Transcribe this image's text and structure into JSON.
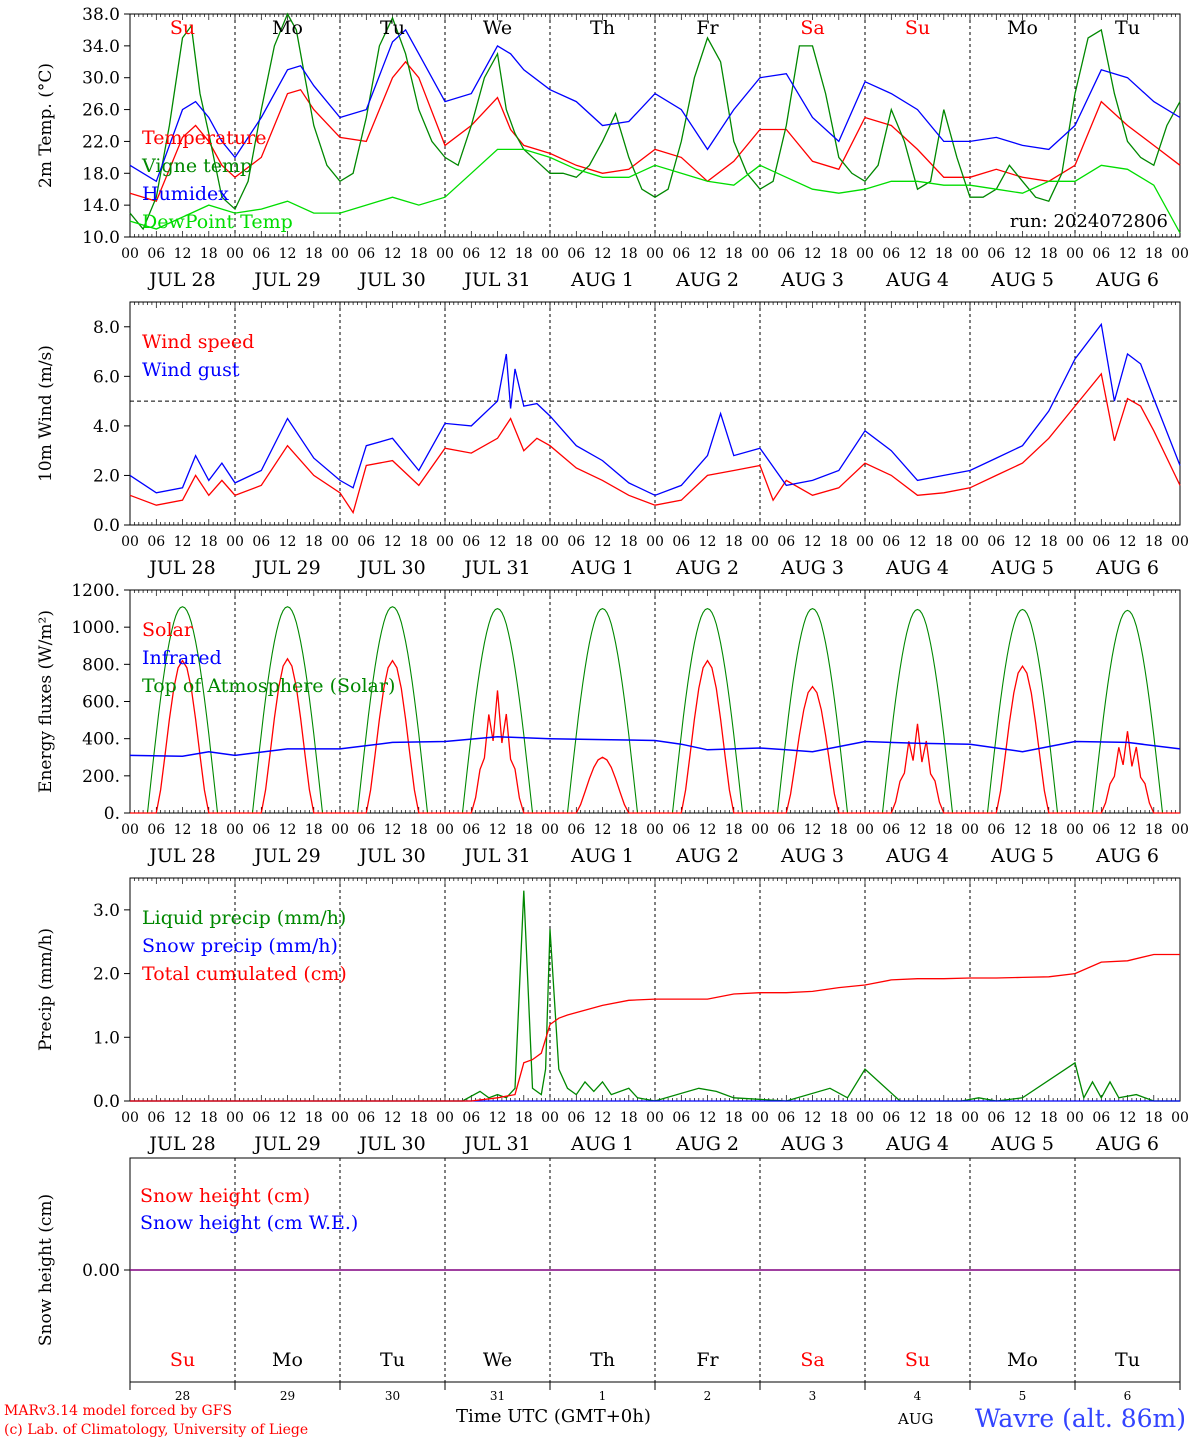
{
  "run_label": "run: 2024072806",
  "credit_line1": "MARv3.14 model forced by GFS",
  "credit_line2": "(c) Lab. of Climatology, University of Liege",
  "location_title": "Wavre (alt. 86m)",
  "month_label": "AUG",
  "time_axis_label": "Time UTC (GMT+0h)",
  "hour_ticks": [
    "00",
    "06",
    "12",
    "18"
  ],
  "final_hour_tick": "00",
  "date_labels": [
    "JUL 28",
    "JUL 29",
    "JUL 30",
    "JUL 31",
    "AUG  1",
    "AUG  2",
    "AUG  3",
    "AUG  4",
    "AUG  5",
    "AUG  6"
  ],
  "day_names": [
    "Su",
    "Mo",
    "Tu",
    "We",
    "Th",
    "Fr",
    "Sa",
    "Su",
    "Mo",
    "Tu"
  ],
  "day_numbers": [
    "28",
    "29",
    "30",
    "31",
    "1",
    "2",
    "3",
    "4",
    "5",
    "6"
  ],
  "weekend_color": "#ff0000",
  "weekday_color": "#000000",
  "chart_data": [
    {
      "type": "line",
      "ylabel": "2m Temp. (°C)",
      "ylim": [
        10,
        38
      ],
      "yticks": [
        "10.0",
        "14.0",
        "18.0",
        "22.0",
        "26.0",
        "30.0",
        "34.0",
        "38.0"
      ],
      "ytick_values": [
        10,
        14,
        18,
        22,
        26,
        30,
        34,
        38
      ],
      "x_unit": "hours since Jul 28 00 UTC",
      "series": [
        {
          "name": "Temperature",
          "color": "#ff0000",
          "x": [
            0,
            6,
            12,
            15,
            18,
            21,
            24,
            30,
            36,
            39,
            42,
            48,
            54,
            60,
            63,
            66,
            72,
            78,
            84,
            87,
            90,
            96,
            102,
            108,
            114,
            120,
            126,
            132,
            138,
            144,
            150,
            156,
            162,
            168,
            174,
            180,
            186,
            192,
            198,
            204,
            210,
            216,
            222,
            228,
            234,
            240
          ],
          "y": [
            15.5,
            14.5,
            22.5,
            24,
            22,
            19,
            17.5,
            20,
            28,
            28.5,
            26,
            22.5,
            22,
            30,
            32,
            30,
            21.5,
            24,
            27.5,
            23.5,
            21.5,
            20.5,
            19,
            18,
            18.5,
            21,
            20,
            17,
            19.5,
            23.5,
            23.5,
            19.5,
            18.5,
            25,
            24,
            21,
            17.5,
            17.5,
            18.5,
            17.5,
            17,
            19,
            27,
            24,
            21.5,
            19
          ]
        },
        {
          "name": "Vigne temp",
          "color": "#008800",
          "x": [
            0,
            3,
            6,
            9,
            12,
            14,
            16,
            18,
            21,
            24,
            27,
            30,
            33,
            36,
            38,
            40,
            42,
            45,
            48,
            51,
            54,
            57,
            60,
            63,
            66,
            69,
            72,
            75,
            78,
            81,
            84,
            86,
            88,
            90,
            93,
            96,
            99,
            102,
            105,
            108,
            111,
            114,
            117,
            120,
            123,
            126,
            129,
            132,
            135,
            138,
            141,
            144,
            147,
            150,
            153,
            156,
            159,
            162,
            165,
            168,
            171,
            174,
            177,
            180,
            183,
            186,
            189,
            192,
            195,
            198,
            201,
            204,
            207,
            210,
            213,
            216,
            219,
            222,
            225,
            228,
            231,
            234,
            237,
            240
          ],
          "y": [
            13,
            11,
            15,
            24,
            35,
            36.5,
            28,
            23,
            15,
            13.5,
            17,
            26,
            34,
            38,
            36,
            30,
            24,
            19,
            17,
            18,
            25,
            34,
            37.5,
            33,
            26,
            22,
            20,
            19,
            24,
            30,
            33,
            26,
            23,
            21,
            19.5,
            18,
            18,
            17.5,
            19,
            22,
            25.5,
            20,
            16,
            15,
            16,
            22,
            30,
            35,
            32,
            22,
            18,
            16,
            17,
            24,
            34,
            34,
            28,
            20,
            18,
            17,
            19,
            26,
            22,
            16,
            17,
            26,
            20,
            15,
            15,
            16,
            19,
            17,
            15,
            14.5,
            18,
            28,
            35,
            36,
            28,
            22,
            20,
            19,
            24,
            27
          ]
        },
        {
          "name": "Humidex",
          "color": "#0000ff",
          "x": [
            0,
            6,
            12,
            15,
            18,
            21,
            24,
            30,
            36,
            39,
            42,
            48,
            54,
            60,
            63,
            66,
            72,
            78,
            84,
            87,
            90,
            96,
            102,
            108,
            114,
            120,
            126,
            132,
            138,
            144,
            150,
            156,
            162,
            168,
            174,
            180,
            186,
            192,
            198,
            204,
            210,
            216,
            222,
            228,
            234,
            240
          ],
          "y": [
            19,
            17,
            26,
            27,
            25,
            22,
            20,
            25,
            31,
            31.5,
            29,
            25,
            26,
            34.5,
            36,
            33,
            27,
            28,
            34,
            33,
            31,
            28.5,
            27,
            24,
            24.5,
            28,
            26,
            21,
            26,
            30,
            30.5,
            25,
            22,
            29.5,
            28,
            26,
            22,
            22,
            22.5,
            21.5,
            21,
            24,
            31,
            30,
            27,
            25
          ]
        },
        {
          "name": "DewPoint Temp",
          "color": "#00dd00",
          "x": [
            0,
            6,
            12,
            18,
            24,
            30,
            36,
            42,
            48,
            54,
            60,
            66,
            72,
            78,
            84,
            90,
            96,
            102,
            108,
            114,
            120,
            126,
            132,
            138,
            144,
            150,
            156,
            162,
            168,
            174,
            180,
            186,
            192,
            198,
            204,
            210,
            216,
            222,
            228,
            234,
            240
          ],
          "y": [
            12,
            11,
            12.5,
            14,
            13,
            13.5,
            14.5,
            13,
            13,
            14,
            15,
            14,
            15,
            18,
            21,
            21,
            20,
            18.5,
            17.5,
            17.5,
            19,
            18,
            17,
            16.5,
            19,
            17.5,
            16,
            15.5,
            16,
            17,
            17,
            16.5,
            16.5,
            16,
            15.5,
            17,
            17,
            19,
            18.5,
            16.5,
            10.5
          ]
        }
      ],
      "legend": [
        "Temperature",
        "Vigne temp",
        "Humidex",
        "DewPoint Temp"
      ],
      "legend_placement": "top-left"
    },
    {
      "type": "line",
      "ylabel": "10m Wind (m/s)",
      "ylim": [
        0,
        9
      ],
      "yticks": [
        "0.0",
        "2.0",
        "4.0",
        "6.0",
        "8.0"
      ],
      "ytick_values": [
        0,
        2,
        4,
        6,
        8
      ],
      "reference_line": 5,
      "series": [
        {
          "name": "Wind speed",
          "color": "#ff0000",
          "x": [
            0,
            6,
            12,
            15,
            18,
            21,
            24,
            30,
            36,
            42,
            48,
            51,
            54,
            60,
            66,
            72,
            78,
            84,
            87,
            90,
            93,
            96,
            102,
            108,
            114,
            120,
            126,
            132,
            138,
            144,
            147,
            150,
            156,
            162,
            168,
            174,
            180,
            186,
            192,
            198,
            204,
            210,
            216,
            222,
            225,
            228,
            231,
            234,
            240
          ],
          "y": [
            1.2,
            0.8,
            1.0,
            2.0,
            1.2,
            1.8,
            1.2,
            1.6,
            3.2,
            2.0,
            1.3,
            0.5,
            2.4,
            2.6,
            1.6,
            3.1,
            2.9,
            3.5,
            4.3,
            3.0,
            3.5,
            3.2,
            2.3,
            1.8,
            1.2,
            0.8,
            1.0,
            2.0,
            2.2,
            2.4,
            1.0,
            1.8,
            1.2,
            1.5,
            2.5,
            2.0,
            1.2,
            1.3,
            1.5,
            2.0,
            2.5,
            3.5,
            4.8,
            6.1,
            3.4,
            5.1,
            4.8,
            3.8,
            1.6
          ]
        },
        {
          "name": "Wind gust",
          "color": "#0000ff",
          "x": [
            0,
            6,
            12,
            15,
            18,
            21,
            24,
            30,
            36,
            42,
            48,
            51,
            54,
            60,
            66,
            72,
            78,
            84,
            86,
            87,
            88,
            90,
            93,
            96,
            102,
            108,
            114,
            120,
            126,
            132,
            135,
            138,
            144,
            150,
            156,
            162,
            168,
            174,
            180,
            186,
            192,
            198,
            204,
            210,
            216,
            222,
            225,
            228,
            231,
            234,
            240
          ],
          "y": [
            2.0,
            1.3,
            1.5,
            2.8,
            1.8,
            2.5,
            1.7,
            2.2,
            4.3,
            2.7,
            1.8,
            1.5,
            3.2,
            3.5,
            2.2,
            4.1,
            4.0,
            5.0,
            6.9,
            4.7,
            6.3,
            4.8,
            4.9,
            4.4,
            3.2,
            2.6,
            1.7,
            1.2,
            1.6,
            2.8,
            4.5,
            2.8,
            3.1,
            1.6,
            1.8,
            2.2,
            3.8,
            3.0,
            1.8,
            2.0,
            2.2,
            2.7,
            3.2,
            4.6,
            6.7,
            8.1,
            5.0,
            6.9,
            6.5,
            5.1,
            2.4
          ]
        }
      ],
      "legend": [
        "Wind speed",
        "Wind gust"
      ],
      "legend_placement": "top-left"
    },
    {
      "type": "line",
      "ylabel": "Energy fluxes (W/m²)",
      "ylim": [
        0,
        1200
      ],
      "yticks": [
        "0.",
        "200.",
        "400.",
        "600.",
        "800.",
        "1000.",
        "1200."
      ],
      "ytick_values": [
        0,
        200,
        400,
        600,
        800,
        1000,
        1200
      ],
      "diurnal": {
        "toa_peak": [
          1110,
          1110,
          1110,
          1100,
          1100,
          1100,
          1100,
          1095,
          1095,
          1090
        ],
        "solar_peak": [
          820,
          830,
          820,
          660,
          300,
          820,
          680,
          480,
          790,
          440
        ],
        "sunrise_hour": 4,
        "sunset_hour": 20,
        "toa_sunrise_hour": 4,
        "toa_sunset_hour": 20
      },
      "series": [
        {
          "name": "Solar",
          "color": "#ff0000"
        },
        {
          "name": "Infrared",
          "color": "#0000ff",
          "x": [
            0,
            12,
            18,
            24,
            36,
            48,
            60,
            72,
            84,
            96,
            108,
            120,
            126,
            132,
            138,
            144,
            150,
            156,
            168,
            180,
            192,
            204,
            216,
            228,
            240
          ],
          "y": [
            310,
            305,
            330,
            310,
            345,
            345,
            380,
            385,
            410,
            400,
            395,
            390,
            370,
            340,
            345,
            350,
            340,
            330,
            385,
            375,
            370,
            330,
            385,
            380,
            345
          ]
        },
        {
          "name": "Top of Atmosphere (Solar)",
          "color": "#008800"
        }
      ],
      "legend": [
        "Solar",
        "Infrared",
        "Top of Atmosphere (Solar)"
      ],
      "legend_placement": "top-left"
    },
    {
      "type": "line",
      "ylabel": "Precip (mm/h)",
      "ylim": [
        0,
        3.5
      ],
      "yticks": [
        "0.0",
        "1.0",
        "2.0",
        "3.0"
      ],
      "ytick_values": [
        0,
        1,
        2,
        3
      ],
      "series": [
        {
          "name": "Liquid precip (mm/h)",
          "color": "#008800",
          "x": [
            0,
            76,
            80,
            82,
            84,
            86,
            88,
            90,
            92,
            94,
            95,
            96,
            98,
            100,
            102,
            104,
            106,
            108,
            110,
            114,
            116,
            120,
            130,
            134,
            138,
            150,
            160,
            164,
            168,
            176,
            180,
            190,
            194,
            198,
            204,
            216,
            218,
            220,
            222,
            224,
            226,
            230,
            234,
            240
          ],
          "y": [
            0,
            0,
            0.15,
            0.05,
            0.1,
            0.05,
            0.2,
            3.3,
            0.2,
            0.1,
            0.5,
            2.7,
            0.5,
            0.2,
            0.1,
            0.3,
            0.15,
            0.3,
            0.1,
            0.2,
            0.05,
            0,
            0.2,
            0.15,
            0.05,
            0,
            0.2,
            0.05,
            0.5,
            0,
            0,
            0,
            0.05,
            0,
            0.05,
            0.6,
            0.05,
            0.3,
            0.05,
            0.3,
            0.05,
            0.1,
            0,
            0
          ]
        },
        {
          "name": "Snow precip (mm/h)",
          "color": "#0000ff",
          "x": [
            0,
            240
          ],
          "y": [
            0,
            0
          ]
        },
        {
          "name": "Total cumulated (cm)",
          "color": "#ff0000",
          "x": [
            0,
            78,
            84,
            88,
            90,
            92,
            94,
            96,
            98,
            100,
            108,
            114,
            120,
            126,
            132,
            138,
            144,
            150,
            156,
            162,
            168,
            174,
            180,
            186,
            192,
            198,
            204,
            210,
            216,
            222,
            228,
            234,
            240
          ],
          "y": [
            0,
            0,
            0.05,
            0.1,
            0.6,
            0.65,
            0.75,
            1.2,
            1.3,
            1.35,
            1.5,
            1.58,
            1.6,
            1.6,
            1.6,
            1.68,
            1.7,
            1.7,
            1.72,
            1.78,
            1.82,
            1.9,
            1.92,
            1.92,
            1.93,
            1.93,
            1.94,
            1.95,
            2.0,
            2.18,
            2.2,
            2.3,
            2.3
          ]
        }
      ],
      "legend": [
        "Liquid precip (mm/h)",
        "Snow precip (mm/h)",
        "Total cumulated (cm)"
      ],
      "legend_placement": "top-left"
    },
    {
      "type": "line",
      "ylabel": "Snow height (cm)",
      "yticks": [
        "0.00"
      ],
      "ytick_values": [
        0
      ],
      "series": [
        {
          "name": "Snow height (cm)",
          "color": "#ff0000",
          "x": [
            0,
            240
          ],
          "y": [
            0,
            0
          ]
        },
        {
          "name": "Snow height (cm W.E.)",
          "color": "#0000ff",
          "x": [
            0,
            240
          ],
          "y": [
            0,
            0
          ]
        }
      ],
      "legend": [
        "Snow height (cm)",
        "Snow height (cm W.E.)"
      ],
      "legend_placement": "top-left"
    }
  ]
}
